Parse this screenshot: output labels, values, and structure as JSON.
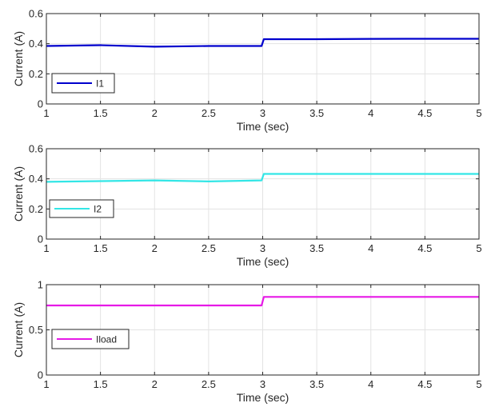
{
  "chart_data": [
    {
      "type": "line",
      "title": "",
      "xlabel": "Time (sec)",
      "ylabel": "Current (A)",
      "xlim": [
        1,
        5
      ],
      "ylim": [
        0,
        0.6
      ],
      "xticks": [
        "1",
        "1.5",
        "2",
        "2.5",
        "3",
        "3.5",
        "4",
        "4.5",
        "5"
      ],
      "yticks": [
        "0",
        "0.2",
        "0.4",
        "0.6"
      ],
      "grid": true,
      "legend": "bottom-left",
      "series": [
        {
          "name": "I1",
          "color": "#0000CD",
          "x": [
            1,
            1.5,
            2,
            2.5,
            2.99,
            3.01,
            3.5,
            4,
            4.5,
            5
          ],
          "y": [
            0.385,
            0.39,
            0.38,
            0.385,
            0.385,
            0.43,
            0.43,
            0.432,
            0.433,
            0.433
          ]
        }
      ]
    },
    {
      "type": "line",
      "title": "",
      "xlabel": "Time (sec)",
      "ylabel": "Current (A)",
      "xlim": [
        1,
        5
      ],
      "ylim": [
        0,
        0.6
      ],
      "xticks": [
        "1",
        "1.5",
        "2",
        "2.5",
        "3",
        "3.5",
        "4",
        "4.5",
        "5"
      ],
      "yticks": [
        "0",
        "0.2",
        "0.4",
        "0.6"
      ],
      "grid": true,
      "legend": "bottom-left",
      "series": [
        {
          "name": "I2",
          "color": "#33E6E6",
          "x": [
            1,
            1.5,
            2,
            2.5,
            2.99,
            3.01,
            3.5,
            4,
            4.5,
            5
          ],
          "y": [
            0.38,
            0.385,
            0.39,
            0.383,
            0.39,
            0.433,
            0.433,
            0.433,
            0.433,
            0.433
          ]
        }
      ]
    },
    {
      "type": "line",
      "title": "",
      "xlabel": "Time (sec)",
      "ylabel": "Current (A)",
      "xlim": [
        1,
        5
      ],
      "ylim": [
        0,
        1
      ],
      "xticks": [
        "1",
        "1.5",
        "2",
        "2.5",
        "3",
        "3.5",
        "4",
        "4.5",
        "5"
      ],
      "yticks": [
        "0",
        "0.5",
        "1"
      ],
      "grid": true,
      "legend": "bottom-left",
      "series": [
        {
          "name": "Iload",
          "color": "#E619E6",
          "x": [
            1,
            1.5,
            2,
            2.5,
            2.99,
            3.01,
            3.5,
            4,
            4.5,
            5
          ],
          "y": [
            0.77,
            0.77,
            0.77,
            0.77,
            0.77,
            0.865,
            0.865,
            0.865,
            0.865,
            0.865
          ]
        }
      ]
    }
  ]
}
